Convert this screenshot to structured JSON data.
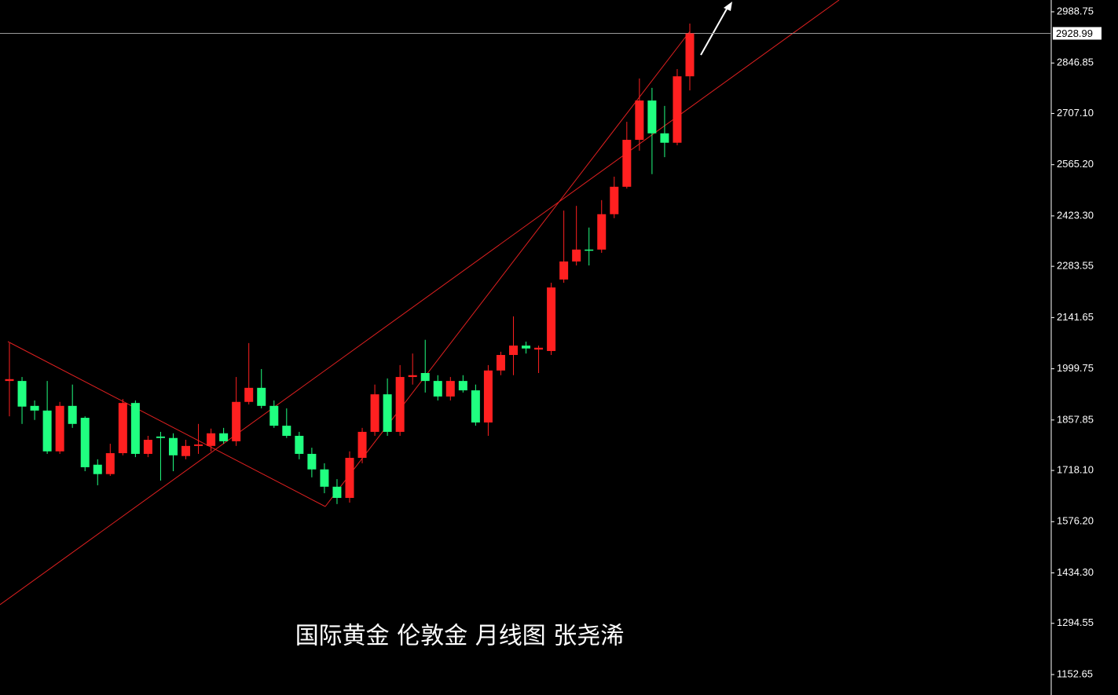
{
  "chart_data": {
    "type": "candlestick",
    "caption": "国际黄金 伦敦金 月线图 张尧浠",
    "up_color": "#ff2020",
    "down_color": "#20ff80",
    "ylim": [
      1096,
      3021.4
    ],
    "yticks": [
      2988.75,
      2846.85,
      {
        "value": 2707.1,
        "label": "2707.10"
      },
      {
        "value": 2565.2,
        "label": "2565.20"
      },
      {
        "value": 2423.3,
        "label": "2423.30"
      },
      2283.55,
      2141.65,
      1999.75,
      1857.85,
      {
        "value": 1718.1,
        "label": "1718.10"
      },
      {
        "value": 1576.2,
        "label": "1576.20"
      },
      {
        "value": 1434.3,
        "label": "1434.30"
      },
      1294.55,
      1152.65
    ],
    "last_price": 2928.99,
    "open": [
      1966,
      1966,
      1897,
      1884,
      1771,
      1897,
      1864,
      1734,
      1708,
      1766,
      1905,
      1764,
      1812,
      1808,
      1758,
      1786,
      1786,
      1821,
      1799,
      1908,
      1947,
      1897,
      1842,
      1814,
      1764,
      1721,
      1673,
      1642,
      1753,
      1825,
      1929,
      1825,
      1977,
      1988,
      1966,
      1923,
      1966,
      1940,
      1851,
      1995,
      2038,
      2064,
      2053,
      2049,
      2247,
      2297,
      2330,
      2330,
      2428,
      2504,
      2634,
      2743,
      2652,
      2626,
      2810
    ],
    "high": [
      2071,
      1977,
      1912,
      1966,
      1908,
      1956,
      1868,
      1749,
      1792,
      1916,
      1912,
      1814,
      1825,
      1821,
      1803,
      1847,
      1834,
      1836,
      1977,
      2071,
      1999,
      1912,
      1890,
      1825,
      1781,
      1738,
      1694,
      1771,
      1836,
      1956,
      1973,
      2010,
      2042,
      2080,
      1982,
      1977,
      1982,
      1956,
      2010,
      2047,
      2145,
      2075,
      2064,
      2238,
      2438,
      2451,
      2391,
      2467,
      2532,
      2684,
      2804,
      2778,
      2728,
      2830,
      2956
    ],
    "low": [
      1868,
      1847,
      1858,
      1764,
      1764,
      1836,
      1716,
      1677,
      1703,
      1760,
      1755,
      1755,
      1690,
      1716,
      1749,
      1764,
      1771,
      1792,
      1786,
      1901,
      1890,
      1836,
      1808,
      1749,
      1699,
      1655,
      1625,
      1629,
      1738,
      1814,
      1814,
      1814,
      1956,
      1934,
      1912,
      1912,
      1934,
      1842,
      1814,
      1982,
      1982,
      2042,
      1988,
      2038,
      2238,
      2286,
      2286,
      2321,
      2417,
      2499,
      2604,
      2539,
      2586,
      2619,
      2771
    ],
    "close": [
      1971,
      1895,
      1884,
      1771,
      1897,
      1847,
      1727,
      1708,
      1766,
      1905,
      1764,
      1803,
      1808,
      1760,
      1786,
      1790,
      1821,
      1799,
      1908,
      1947,
      1897,
      1842,
      1814,
      1764,
      1721,
      1673,
      1642,
      1753,
      1825,
      1929,
      1825,
      1977,
      1982,
      1966,
      1923,
      1966,
      1940,
      1851,
      1995,
      2038,
      2064,
      2056,
      2058,
      2225,
      2297,
      2330,
      2328,
      2428,
      2504,
      2634,
      2743,
      2652,
      2626,
      2810,
      2929
    ]
  }
}
